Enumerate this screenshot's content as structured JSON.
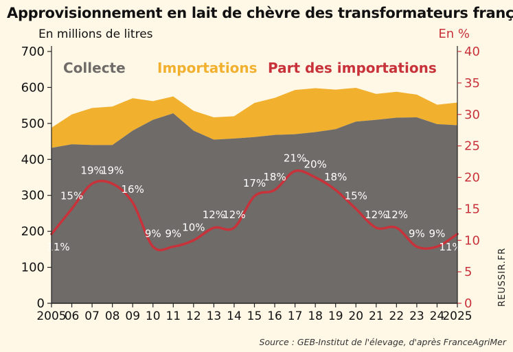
{
  "header": {
    "title": "Approvisionnement en lait de chèvre des transformateurs français",
    "unit_left": "En millions de litres",
    "unit_right": "En %"
  },
  "legend": {
    "collecte": "Collecte",
    "importations": "Importations",
    "part": "Part des importations"
  },
  "footer": {
    "source": "Source : GEB-Institut de l'élevage, d'après FranceAgriMer",
    "credit": "REUSSIR.FR"
  },
  "colors": {
    "collecte": "#6e6b68",
    "importations": "#f2b02f",
    "part": "#c8323a",
    "background": "#fff8e7"
  },
  "chart_data": {
    "type": "area",
    "title": "Approvisionnement en lait de chèvre des transformateurs français",
    "x": [
      "2005",
      "06",
      "07",
      "08",
      "09",
      "10",
      "11",
      "12",
      "13",
      "14",
      "15",
      "16",
      "17",
      "18",
      "19",
      "20",
      "21",
      "22",
      "23",
      "24",
      "2025"
    ],
    "ylabel": "En millions de litres",
    "ylim": [
      0,
      700
    ],
    "yticks": [
      0,
      100,
      200,
      300,
      400,
      500,
      600,
      700
    ],
    "y2label": "En %",
    "y2lim": [
      0,
      40
    ],
    "y2ticks": [
      0,
      5,
      10,
      15,
      20,
      25,
      30,
      35,
      40
    ],
    "series": [
      {
        "name": "Collecte",
        "type": "area",
        "axis": "left",
        "values": [
          432,
          442,
          440,
          440,
          480,
          510,
          528,
          480,
          455,
          458,
          462,
          468,
          470,
          476,
          484,
          505,
          510,
          516,
          517,
          498,
          495
        ]
      },
      {
        "name": "Importations",
        "type": "area",
        "axis": "left",
        "values": [
          56,
          83,
          103,
          107,
          90,
          52,
          47,
          55,
          62,
          62,
          95,
          103,
          123,
          122,
          110,
          94,
          72,
          72,
          63,
          54,
          63
        ]
      },
      {
        "name": "Part des importations",
        "type": "line",
        "axis": "right",
        "values": [
          11,
          15,
          19,
          19,
          16,
          9,
          9,
          10,
          12,
          12,
          17,
          18,
          21,
          20,
          18,
          15,
          12,
          12,
          9,
          9,
          11
        ],
        "labels": [
          "11%",
          "15%",
          "19%",
          "19%",
          "16%",
          "9%",
          "9%",
          "10%",
          "12%",
          "12%",
          "17%",
          "18%",
          "21%",
          "20%",
          "18%",
          "15%",
          "12%",
          "12%",
          "9%",
          "9%",
          "11%"
        ]
      }
    ],
    "legend_position": "top",
    "grid": false
  }
}
